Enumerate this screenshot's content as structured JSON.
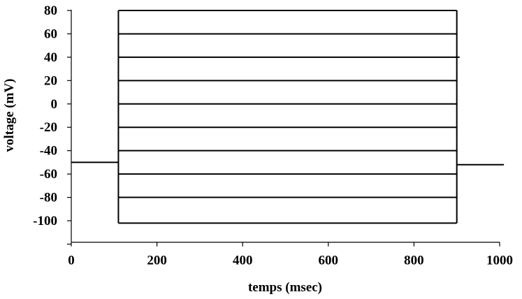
{
  "chart_data": {
    "type": "line",
    "title": "",
    "xlabel": "temps (msec)",
    "ylabel": "voltage (mV)",
    "xlim": [
      0,
      1000
    ],
    "ylim": [
      -110,
      80
    ],
    "x_ticks": [
      "0",
      "200",
      "400",
      "600",
      "800",
      "1000"
    ],
    "y_ticks": [
      {
        "value": 80,
        "label": "80"
      },
      {
        "value": 60,
        "label": "60"
      },
      {
        "value": 40,
        "label": "40"
      },
      {
        "value": 20,
        "label": "20"
      },
      {
        "value": 0,
        "label": "0"
      },
      {
        "value": -20,
        "label": "-20"
      },
      {
        "value": -40,
        "label": "-40"
      },
      {
        "value": -60,
        "label": "-60"
      },
      {
        "value": -80,
        "label": "-80"
      },
      {
        "value": -100,
        "label": "-100"
      }
    ],
    "grid": false,
    "legend": "none",
    "holding_potential_mV": -50,
    "step_start_msec": 110,
    "step_end_msec": 900,
    "step_levels_mV": [
      80,
      60,
      40,
      20,
      0,
      -20,
      -40,
      -60,
      -80,
      -102
    ],
    "post_step_potential_mV": -52,
    "series": [
      {
        "x": [
          0,
          110,
          110,
          900,
          900,
          1010
        ],
        "y": [
          -50,
          -50,
          80,
          80,
          -52,
          -52
        ]
      },
      {
        "x": [
          0,
          110,
          110,
          900,
          900,
          1010
        ],
        "y": [
          -50,
          -50,
          60,
          60,
          -52,
          -52
        ]
      },
      {
        "x": [
          0,
          110,
          110,
          900,
          900,
          1010
        ],
        "y": [
          -50,
          -50,
          40,
          40,
          -52,
          -52
        ]
      },
      {
        "x": [
          0,
          110,
          110,
          900,
          900,
          1010
        ],
        "y": [
          -50,
          -50,
          20,
          20,
          -52,
          -52
        ]
      },
      {
        "x": [
          0,
          110,
          110,
          900,
          900,
          1010
        ],
        "y": [
          -50,
          -50,
          0,
          0,
          -52,
          -52
        ]
      },
      {
        "x": [
          0,
          110,
          110,
          900,
          900,
          1010
        ],
        "y": [
          -50,
          -50,
          -20,
          -20,
          -52,
          -52
        ]
      },
      {
        "x": [
          0,
          110,
          110,
          900,
          900,
          1010
        ],
        "y": [
          -50,
          -50,
          -40,
          -40,
          -52,
          -52
        ]
      },
      {
        "x": [
          0,
          110,
          110,
          900,
          900,
          1010
        ],
        "y": [
          -50,
          -50,
          -60,
          -60,
          -52,
          -52
        ]
      },
      {
        "x": [
          0,
          110,
          110,
          900,
          900,
          1010
        ],
        "y": [
          -50,
          -50,
          -80,
          -80,
          -52,
          -52
        ]
      },
      {
        "x": [
          0,
          110,
          110,
          900,
          900,
          1010
        ],
        "y": [
          -50,
          -50,
          -102,
          -102,
          -52,
          -52
        ]
      }
    ]
  }
}
